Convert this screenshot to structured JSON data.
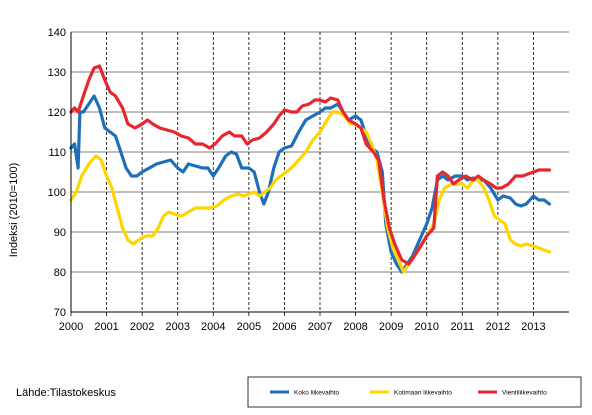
{
  "source": "Lähde:Tilastokeskus",
  "colors": {
    "koko": "#1f6fb8",
    "kotimaan": "#ffd500",
    "vienti": "#e8262d",
    "grid": "#000000"
  },
  "chart_data": {
    "type": "line",
    "title": "",
    "xlabel": "",
    "ylabel": "Indeksi (2010=100)",
    "ylim": [
      70,
      140
    ],
    "yticks": [
      70,
      80,
      90,
      100,
      110,
      120,
      130,
      140
    ],
    "xlim": [
      2000,
      2014
    ],
    "xticks": [
      "2000",
      "2001",
      "2002",
      "2003",
      "2004",
      "2005",
      "2006",
      "2007",
      "2008",
      "2009",
      "2010",
      "2011",
      "2012",
      "2013"
    ],
    "grid": "vertical dashed at years",
    "legend_position": "bottom-right",
    "series": [
      {
        "name": "Koko liikevaihto",
        "color_key": "koko",
        "points": [
          [
            2000.0,
            111
          ],
          [
            2000.1,
            112
          ],
          [
            2000.2,
            106
          ],
          [
            2000.25,
            120
          ],
          [
            2000.35,
            120
          ],
          [
            2000.5,
            122
          ],
          [
            2000.65,
            124
          ],
          [
            2000.8,
            121
          ],
          [
            2000.95,
            116
          ],
          [
            2001.1,
            115
          ],
          [
            2001.25,
            114
          ],
          [
            2001.4,
            110
          ],
          [
            2001.55,
            106
          ],
          [
            2001.7,
            104
          ],
          [
            2001.85,
            104
          ],
          [
            2002.0,
            105
          ],
          [
            2002.2,
            106
          ],
          [
            2002.4,
            107
          ],
          [
            2002.6,
            107.5
          ],
          [
            2002.8,
            108
          ],
          [
            2003.0,
            106
          ],
          [
            2003.15,
            105
          ],
          [
            2003.3,
            107
          ],
          [
            2003.5,
            106.5
          ],
          [
            2003.7,
            106
          ],
          [
            2003.85,
            106
          ],
          [
            2004.0,
            104
          ],
          [
            2004.15,
            106
          ],
          [
            2004.35,
            109
          ],
          [
            2004.5,
            110
          ],
          [
            2004.65,
            109.5
          ],
          [
            2004.8,
            106
          ],
          [
            2005.0,
            106
          ],
          [
            2005.15,
            105
          ],
          [
            2005.3,
            100
          ],
          [
            2005.42,
            97
          ],
          [
            2005.55,
            100
          ],
          [
            2005.7,
            106
          ],
          [
            2005.85,
            110
          ],
          [
            2006.0,
            111
          ],
          [
            2006.2,
            111.5
          ],
          [
            2006.4,
            115
          ],
          [
            2006.6,
            118
          ],
          [
            2006.8,
            119
          ],
          [
            2007.0,
            120
          ],
          [
            2007.15,
            121
          ],
          [
            2007.3,
            121
          ],
          [
            2007.5,
            122
          ],
          [
            2007.65,
            120
          ],
          [
            2007.8,
            118
          ],
          [
            2008.0,
            119
          ],
          [
            2008.15,
            118
          ],
          [
            2008.3,
            114
          ],
          [
            2008.45,
            111
          ],
          [
            2008.6,
            110
          ],
          [
            2008.75,
            105
          ],
          [
            2008.85,
            92
          ],
          [
            2009.0,
            85
          ],
          [
            2009.15,
            82
          ],
          [
            2009.3,
            80
          ],
          [
            2009.45,
            82
          ],
          [
            2009.6,
            84
          ],
          [
            2009.8,
            88
          ],
          [
            2010.0,
            92
          ],
          [
            2010.15,
            96
          ],
          [
            2010.3,
            103
          ],
          [
            2010.45,
            104
          ],
          [
            2010.6,
            103
          ],
          [
            2010.8,
            104
          ],
          [
            2011.0,
            104
          ],
          [
            2011.15,
            103
          ],
          [
            2011.3,
            103.5
          ],
          [
            2011.45,
            103
          ],
          [
            2011.6,
            103
          ],
          [
            2011.8,
            101
          ],
          [
            2012.0,
            98
          ],
          [
            2012.15,
            99
          ],
          [
            2012.35,
            98.5
          ],
          [
            2012.5,
            97
          ],
          [
            2012.65,
            96.5
          ],
          [
            2012.8,
            97
          ],
          [
            2013.0,
            99
          ],
          [
            2013.15,
            98
          ],
          [
            2013.3,
            98
          ],
          [
            2013.45,
            97
          ]
        ]
      },
      {
        "name": "Kotimaan liikevaihto",
        "color_key": "kotimaan",
        "points": [
          [
            2000.0,
            98
          ],
          [
            2000.15,
            100
          ],
          [
            2000.3,
            104
          ],
          [
            2000.5,
            107
          ],
          [
            2000.7,
            109
          ],
          [
            2000.85,
            108
          ],
          [
            2001.0,
            104
          ],
          [
            2001.15,
            101
          ],
          [
            2001.3,
            96
          ],
          [
            2001.45,
            91
          ],
          [
            2001.6,
            88
          ],
          [
            2001.75,
            87
          ],
          [
            2001.9,
            88
          ],
          [
            2002.1,
            89
          ],
          [
            2002.3,
            89
          ],
          [
            2002.45,
            91
          ],
          [
            2002.6,
            94
          ],
          [
            2002.75,
            95
          ],
          [
            2002.9,
            94.5
          ],
          [
            2003.1,
            94
          ],
          [
            2003.3,
            95
          ],
          [
            2003.5,
            96
          ],
          [
            2003.7,
            96
          ],
          [
            2003.9,
            96
          ],
          [
            2004.1,
            96.5
          ],
          [
            2004.3,
            98
          ],
          [
            2004.5,
            99
          ],
          [
            2004.7,
            99.5
          ],
          [
            2004.85,
            99
          ],
          [
            2005.0,
            99.5
          ],
          [
            2005.15,
            100
          ],
          [
            2005.3,
            99
          ],
          [
            2005.45,
            100
          ],
          [
            2005.6,
            101
          ],
          [
            2005.75,
            103
          ],
          [
            2005.9,
            104
          ],
          [
            2006.05,
            105
          ],
          [
            2006.2,
            106
          ],
          [
            2006.4,
            108
          ],
          [
            2006.6,
            110
          ],
          [
            2006.8,
            113
          ],
          [
            2007.0,
            115
          ],
          [
            2007.2,
            118
          ],
          [
            2007.35,
            120
          ],
          [
            2007.5,
            120
          ],
          [
            2007.7,
            119
          ],
          [
            2007.85,
            117
          ],
          [
            2008.0,
            117
          ],
          [
            2008.15,
            116
          ],
          [
            2008.3,
            115
          ],
          [
            2008.45,
            112
          ],
          [
            2008.6,
            108
          ],
          [
            2008.75,
            100
          ],
          [
            2008.9,
            91
          ],
          [
            2009.05,
            86
          ],
          [
            2009.2,
            83
          ],
          [
            2009.35,
            80
          ],
          [
            2009.5,
            82
          ],
          [
            2009.65,
            84
          ],
          [
            2009.8,
            86
          ],
          [
            2010.0,
            89
          ],
          [
            2010.2,
            92
          ],
          [
            2010.35,
            98
          ],
          [
            2010.5,
            101
          ],
          [
            2010.7,
            102
          ],
          [
            2010.85,
            102
          ],
          [
            2011.0,
            102
          ],
          [
            2011.15,
            101
          ],
          [
            2011.3,
            103
          ],
          [
            2011.45,
            103
          ],
          [
            2011.6,
            101
          ],
          [
            2011.75,
            98
          ],
          [
            2011.9,
            94
          ],
          [
            2012.05,
            93
          ],
          [
            2012.2,
            92
          ],
          [
            2012.35,
            88
          ],
          [
            2012.5,
            87
          ],
          [
            2012.65,
            86.5
          ],
          [
            2012.8,
            87
          ],
          [
            2013.0,
            86.5
          ],
          [
            2013.15,
            86
          ],
          [
            2013.3,
            85.5
          ],
          [
            2013.45,
            85
          ]
        ]
      },
      {
        "name": "Vientiliikevaihto",
        "color_key": "vienti",
        "points": [
          [
            2000.0,
            120
          ],
          [
            2000.1,
            121
          ],
          [
            2000.2,
            120
          ],
          [
            2000.35,
            124
          ],
          [
            2000.5,
            128
          ],
          [
            2000.65,
            131
          ],
          [
            2000.8,
            131.5
          ],
          [
            2000.95,
            128
          ],
          [
            2001.1,
            125
          ],
          [
            2001.25,
            124
          ],
          [
            2001.45,
            121
          ],
          [
            2001.6,
            117
          ],
          [
            2001.8,
            116
          ],
          [
            2002.0,
            117
          ],
          [
            2002.15,
            118
          ],
          [
            2002.3,
            117
          ],
          [
            2002.5,
            116
          ],
          [
            2002.7,
            115.5
          ],
          [
            2002.9,
            115
          ],
          [
            2003.1,
            114
          ],
          [
            2003.3,
            113.5
          ],
          [
            2003.5,
            112
          ],
          [
            2003.7,
            112
          ],
          [
            2003.9,
            111
          ],
          [
            2004.05,
            112
          ],
          [
            2004.25,
            114
          ],
          [
            2004.45,
            115
          ],
          [
            2004.6,
            114
          ],
          [
            2004.8,
            114
          ],
          [
            2004.95,
            112
          ],
          [
            2005.1,
            113
          ],
          [
            2005.3,
            113.5
          ],
          [
            2005.5,
            115
          ],
          [
            2005.7,
            117
          ],
          [
            2005.85,
            119
          ],
          [
            2006.0,
            120.5
          ],
          [
            2006.2,
            120
          ],
          [
            2006.35,
            120
          ],
          [
            2006.5,
            121.5
          ],
          [
            2006.7,
            122
          ],
          [
            2006.85,
            123
          ],
          [
            2007.0,
            123
          ],
          [
            2007.15,
            122.5
          ],
          [
            2007.3,
            123.5
          ],
          [
            2007.5,
            123
          ],
          [
            2007.65,
            120
          ],
          [
            2007.8,
            118
          ],
          [
            2008.0,
            117
          ],
          [
            2008.15,
            116
          ],
          [
            2008.3,
            112
          ],
          [
            2008.5,
            110
          ],
          [
            2008.65,
            108
          ],
          [
            2008.8,
            98
          ],
          [
            2008.95,
            91
          ],
          [
            2009.1,
            87
          ],
          [
            2009.3,
            83
          ],
          [
            2009.5,
            82
          ],
          [
            2009.65,
            84
          ],
          [
            2009.8,
            86
          ],
          [
            2010.0,
            89
          ],
          [
            2010.2,
            91
          ],
          [
            2010.3,
            104
          ],
          [
            2010.45,
            105
          ],
          [
            2010.6,
            104
          ],
          [
            2010.75,
            102
          ],
          [
            2010.9,
            103
          ],
          [
            2011.1,
            104
          ],
          [
            2011.3,
            103
          ],
          [
            2011.45,
            104
          ],
          [
            2011.6,
            103
          ],
          [
            2011.8,
            102
          ],
          [
            2011.95,
            101
          ],
          [
            2012.1,
            101
          ],
          [
            2012.3,
            102
          ],
          [
            2012.5,
            104
          ],
          [
            2012.7,
            104
          ],
          [
            2012.85,
            104.5
          ],
          [
            2013.0,
            105
          ],
          [
            2013.15,
            105.5
          ],
          [
            2013.3,
            105.5
          ],
          [
            2013.45,
            105.5
          ]
        ]
      }
    ]
  }
}
